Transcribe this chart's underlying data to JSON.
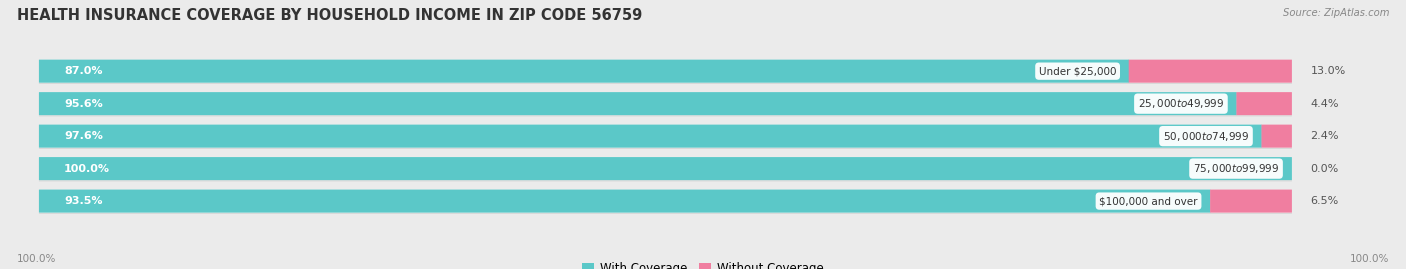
{
  "title": "HEALTH INSURANCE COVERAGE BY HOUSEHOLD INCOME IN ZIP CODE 56759",
  "source": "Source: ZipAtlas.com",
  "categories": [
    "Under $25,000",
    "$25,000 to $49,999",
    "$50,000 to $74,999",
    "$75,000 to $99,999",
    "$100,000 and over"
  ],
  "with_coverage": [
    87.0,
    95.6,
    97.6,
    100.0,
    93.5
  ],
  "without_coverage": [
    13.0,
    4.4,
    2.4,
    0.0,
    6.5
  ],
  "color_with": "#5BC8C8",
  "color_without": "#F07EA0",
  "bg_color": "#ebebeb",
  "bar_bg": "#ffffff",
  "bar_shadow": "#d8d8d8",
  "title_fontsize": 10.5,
  "label_fontsize": 8.0,
  "legend_fontsize": 8.5,
  "bar_height": 0.68,
  "bottom_labels": [
    "100.0%",
    "100.0%"
  ],
  "total_width": 100
}
